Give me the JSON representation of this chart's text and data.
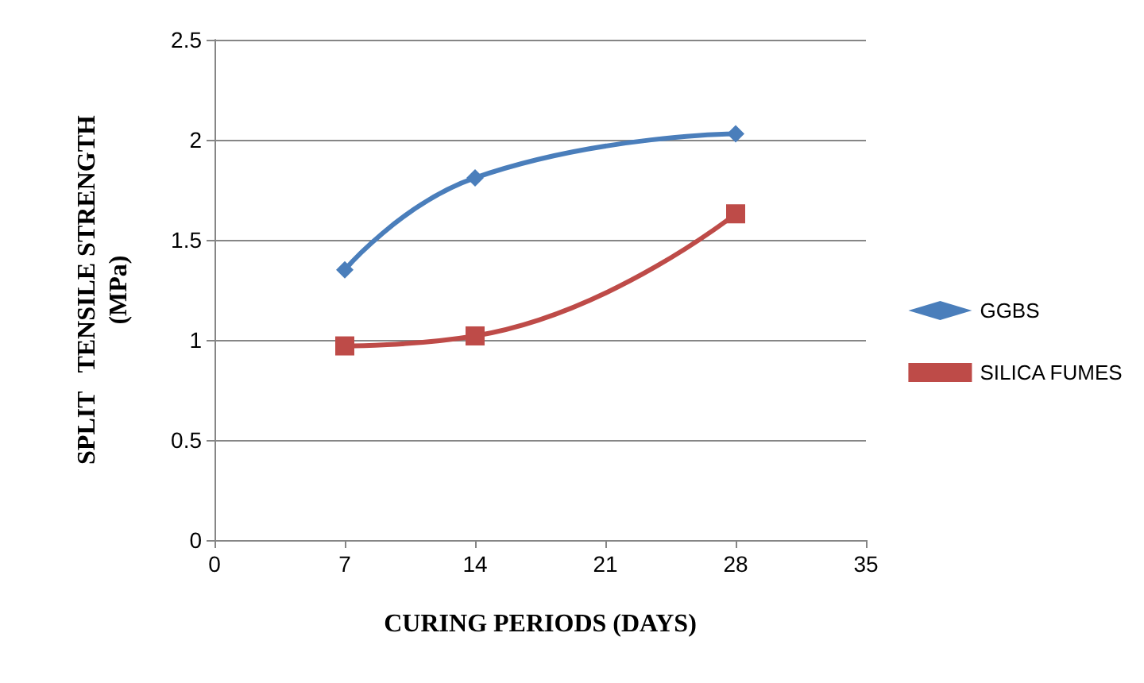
{
  "chart_data": {
    "type": "line",
    "xlabel": "CURING PERIODS (DAYS)",
    "ylabel": "SPLIT   TENSILE STRENGTH\n(MPa)",
    "x": [
      7,
      14,
      28
    ],
    "series": [
      {
        "name": "GGBS",
        "color": "#4a7ebb",
        "marker": "diamond",
        "values": [
          1.35,
          1.81,
          2.03
        ]
      },
      {
        "name": "SILICA FUMES",
        "color": "#be4b48",
        "marker": "square",
        "values": [
          0.97,
          1.02,
          1.63
        ]
      }
    ],
    "xlim": [
      0,
      35
    ],
    "xticks": [
      0,
      7,
      14,
      21,
      28,
      35
    ],
    "ylim": [
      0,
      2.5
    ],
    "yticks": [
      0,
      0.5,
      1,
      1.5,
      2,
      2.5
    ],
    "grid": "y",
    "legend": "right"
  }
}
